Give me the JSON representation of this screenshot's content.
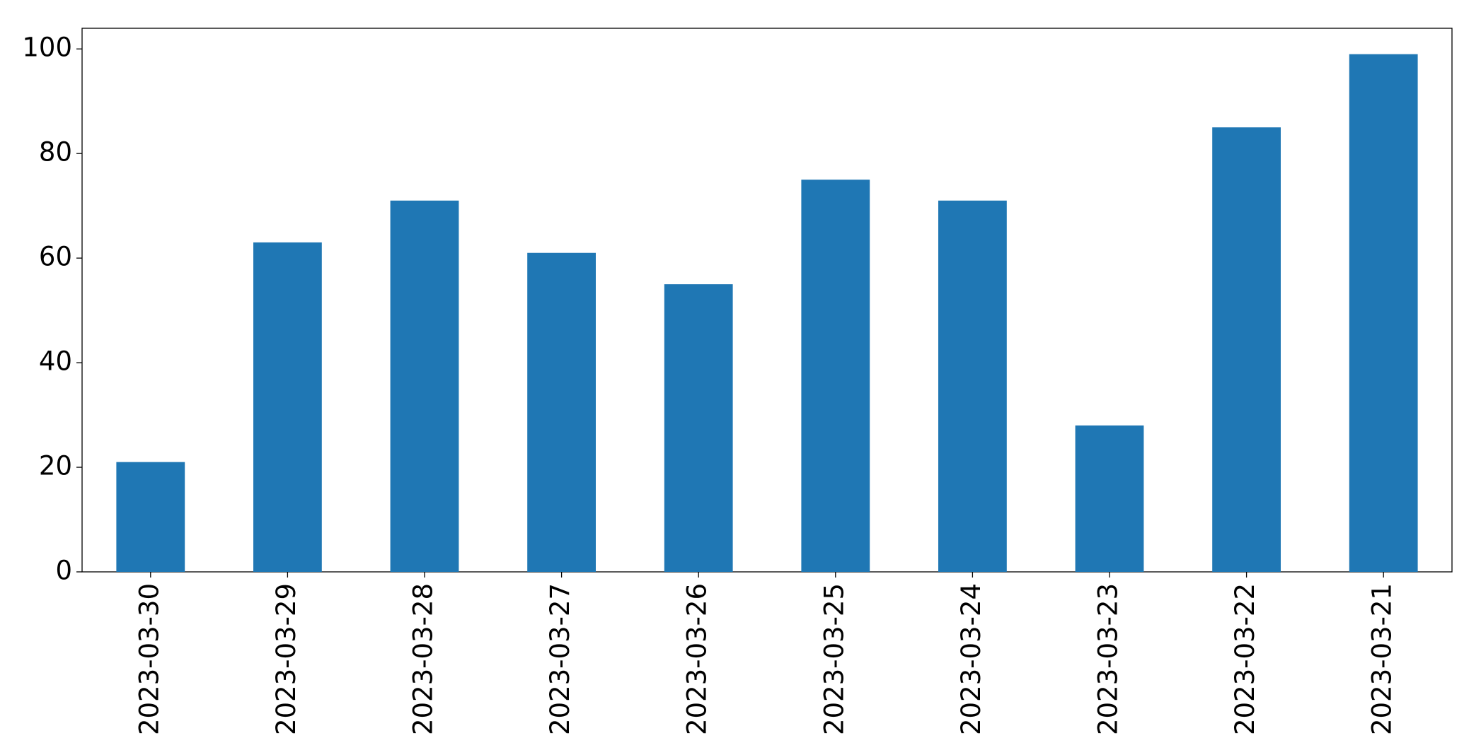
{
  "chart_data": {
    "type": "bar",
    "categories": [
      "2023-03-30",
      "2023-03-29",
      "2023-03-28",
      "2023-03-27",
      "2023-03-26",
      "2023-03-25",
      "2023-03-24",
      "2023-03-23",
      "2023-03-22",
      "2023-03-21"
    ],
    "values": [
      21,
      63,
      71,
      61,
      55,
      75,
      71,
      28,
      85,
      99
    ],
    "color": "#1f77b4",
    "ylim": [
      0,
      103.95
    ],
    "yticks": [
      0,
      20,
      40,
      60,
      80,
      100
    ],
    "grid": false
  }
}
